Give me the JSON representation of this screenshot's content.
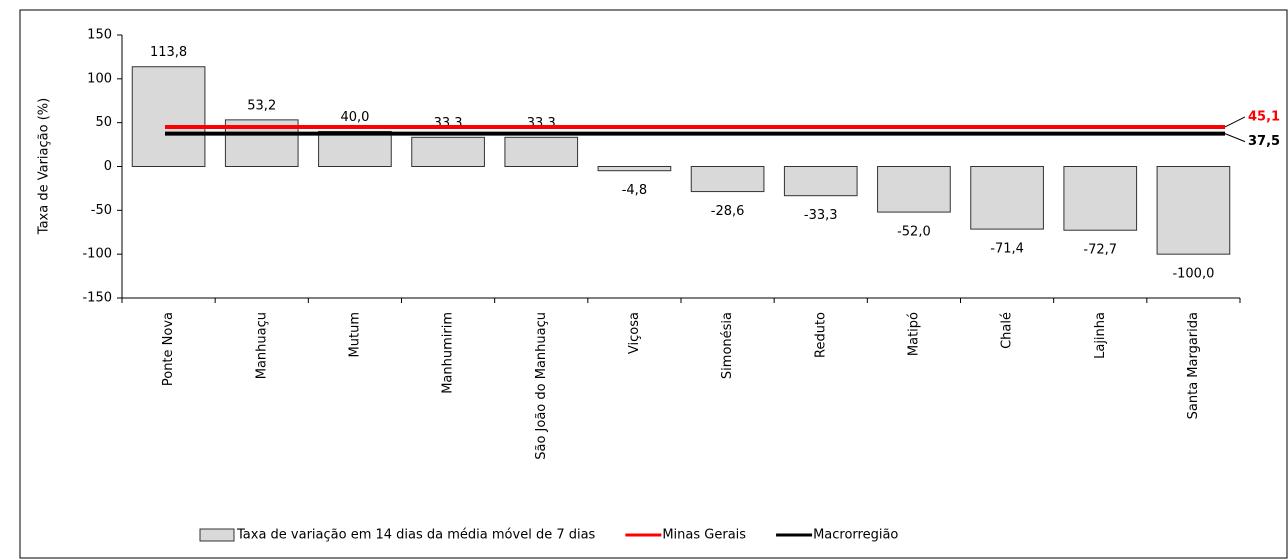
{
  "chart_data": {
    "type": "bar",
    "y_label": "Taxa de Variação (%)",
    "categories": [
      "Ponte Nova",
      "Manhuaçu",
      "Mutum",
      "Manhumirim",
      "São João do Manhuaçu",
      "Viçosa",
      "Simonésia",
      "Reduto",
      "Matipó",
      "Chalé",
      "Lajinha",
      "Santa Margarida"
    ],
    "series": [
      {
        "name": "Taxa de variação em 14 dias da média móvel de 7 dias",
        "color": "#d9d9d9",
        "values": [
          113.8,
          53.2,
          40.0,
          33.3,
          33.3,
          -4.8,
          -28.6,
          -33.3,
          -52.0,
          -71.4,
          -72.7,
          -100.0
        ],
        "value_labels": [
          "113,8",
          "53,2",
          "40,0",
          "33,3",
          "33,3",
          "-4,8",
          "-28,6",
          "-33,3",
          "-52,0",
          "-71,4",
          "-72,7",
          "-100,0"
        ]
      }
    ],
    "reference_lines": [
      {
        "name": "Minas Gerais",
        "color": "#ff0000",
        "value": 45.1,
        "value_label": "45,1"
      },
      {
        "name": "Macrorregião",
        "color": "#000000",
        "value": 37.5,
        "value_label": "37,5"
      }
    ],
    "ylim": [
      -150,
      150
    ],
    "yticks": [
      -150,
      -100,
      -50,
      0,
      50,
      100,
      150
    ],
    "grid": false
  }
}
